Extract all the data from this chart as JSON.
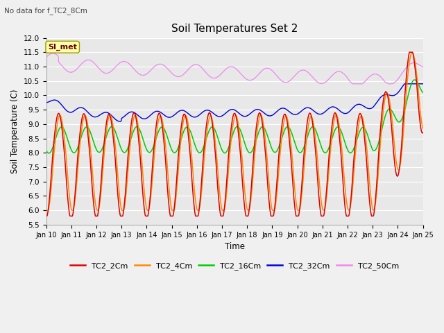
{
  "title": "Soil Temperatures Set 2",
  "subtitle": "No data for f_TC2_8Cm",
  "xlabel": "Time",
  "ylabel": "Soil Temperature (C)",
  "ylim": [
    5.5,
    12.0
  ],
  "yticks": [
    5.5,
    6.0,
    6.5,
    7.0,
    7.5,
    8.0,
    8.5,
    9.0,
    9.5,
    10.0,
    10.5,
    11.0,
    11.5,
    12.0
  ],
  "colors": {
    "TC2_2Cm": "#dd0000",
    "TC2_4Cm": "#ff8800",
    "TC2_16Cm": "#00cc00",
    "TC2_32Cm": "#0000dd",
    "TC2_50Cm": "#ee88ee"
  },
  "legend_label": "SI_met",
  "fig_bg": "#f0f0f0",
  "plot_bg": "#e8e8e8",
  "n_points": 720
}
